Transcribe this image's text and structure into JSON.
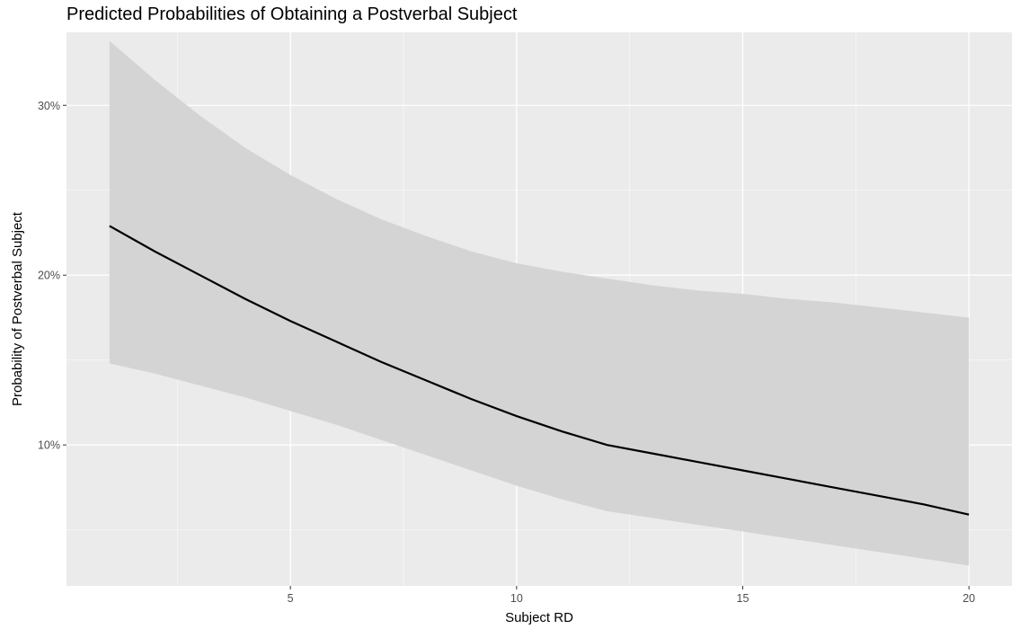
{
  "chart_data": {
    "type": "line",
    "title": "Predicted Probabilities of Obtaining a Postverbal Subject",
    "xlabel": "Subject RD",
    "ylabel": "Probability of Postverbal Subject",
    "xlim": [
      0.05,
      20.95
    ],
    "ylim": [
      0.017,
      0.343
    ],
    "x_ticks": [
      5,
      10,
      15,
      20
    ],
    "x_tick_labels": [
      "5",
      "10",
      "15",
      "20"
    ],
    "y_ticks": [
      0.1,
      0.2,
      0.3
    ],
    "y_tick_labels": [
      "10%",
      "20%",
      "30%"
    ],
    "grid": true,
    "legend": "none",
    "colors": {
      "panel_background": "#ebebeb",
      "grid": "#ffffff",
      "line": "#000000",
      "ribbon": "#d4d4d4"
    },
    "series": [
      {
        "x": [
          1,
          2,
          3,
          4,
          5,
          6,
          7,
          8,
          9,
          10,
          11,
          12,
          13,
          14,
          15,
          16,
          17,
          18,
          19,
          20
        ],
        "values": [
          0.229,
          0.214,
          0.2,
          0.186,
          0.173,
          0.161,
          0.149,
          0.138,
          0.127,
          0.117,
          0.108,
          0.1,
          0.095,
          0.09,
          0.085,
          0.08,
          0.075,
          0.07,
          0.065,
          0.059
        ],
        "lower": [
          0.148,
          0.142,
          0.135,
          0.128,
          0.12,
          0.112,
          0.103,
          0.094,
          0.085,
          0.076,
          0.068,
          0.061,
          0.057,
          0.053,
          0.049,
          0.045,
          0.041,
          0.037,
          0.033,
          0.029
        ],
        "upper": [
          0.338,
          0.315,
          0.294,
          0.275,
          0.259,
          0.245,
          0.233,
          0.223,
          0.214,
          0.207,
          0.202,
          0.198,
          0.194,
          0.191,
          0.189,
          0.186,
          0.184,
          0.181,
          0.178,
          0.175
        ]
      }
    ]
  }
}
